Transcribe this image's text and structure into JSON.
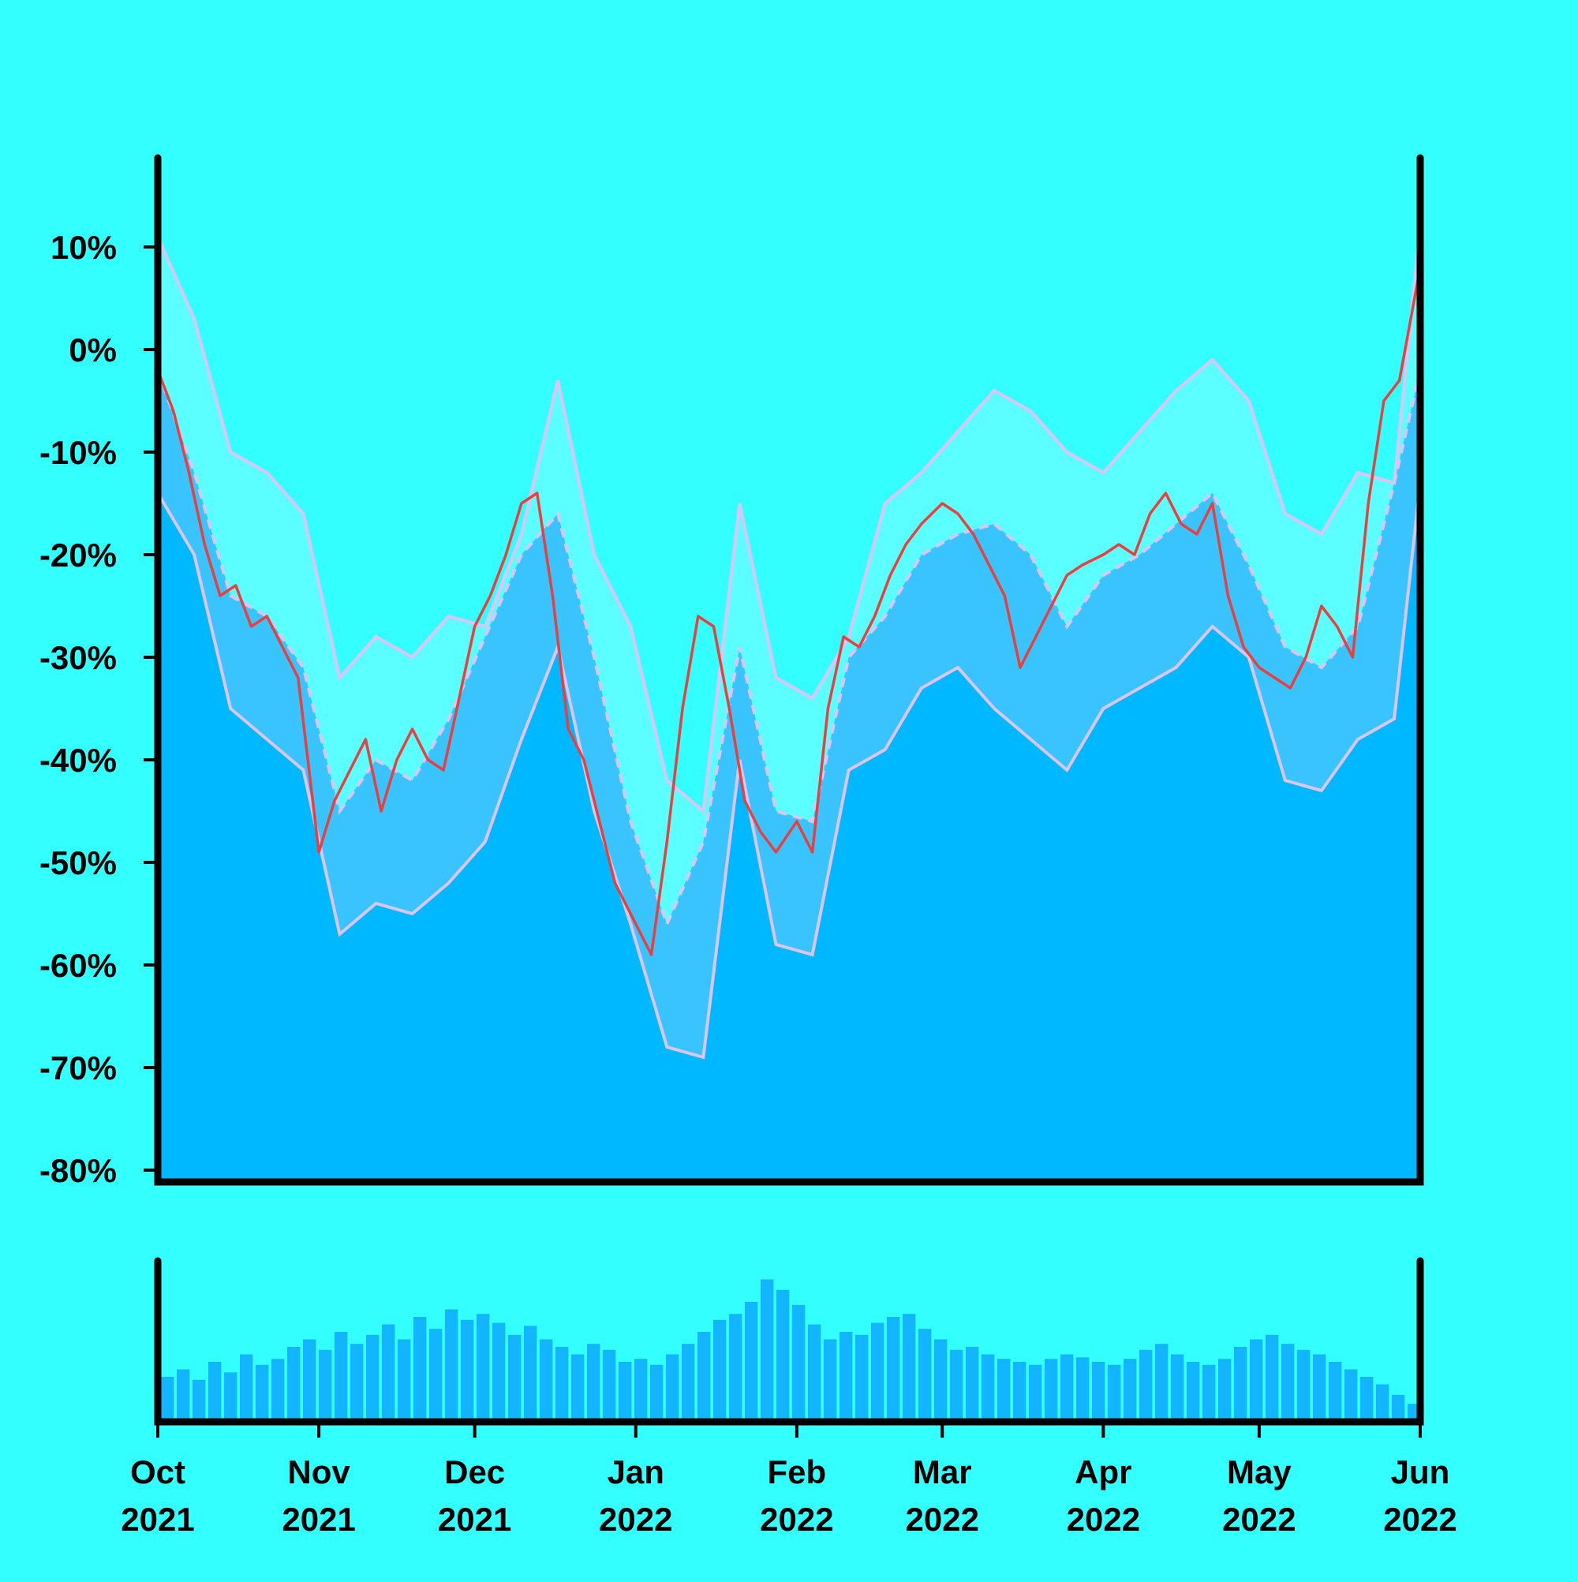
{
  "colors": {
    "background": "#34FFFF",
    "band_upper_fill": "#5CFFFF",
    "band_lower_fill": "#3AC4FF",
    "area_fill": "#00B8FF",
    "price_line": "#E8403F",
    "envelope_line": "#DCC4F5",
    "volume_bar": "#11B6FF",
    "axis": "#000000"
  },
  "chart_data": {
    "type": "line",
    "title": "",
    "xlabel": "",
    "ylabel": "",
    "y_unit": "%",
    "x_range": [
      "2021-10-01",
      "2022-06-01"
    ],
    "ylim": [
      -80,
      18
    ],
    "y_ticks": [
      {
        "value": 10,
        "label": "10%"
      },
      {
        "value": 0,
        "label": "0%"
      },
      {
        "value": -10,
        "label": "-10%"
      },
      {
        "value": -20,
        "label": "-20%"
      },
      {
        "value": -30,
        "label": "-30%"
      },
      {
        "value": -40,
        "label": "-40%"
      },
      {
        "value": -50,
        "label": "-50%"
      },
      {
        "value": -60,
        "label": "-60%"
      },
      {
        "value": -70,
        "label": "-70%"
      },
      {
        "value": -80,
        "label": "-80%"
      }
    ],
    "x_ticks": [
      {
        "date": "2021-10-01",
        "month": "Oct",
        "year": "2021"
      },
      {
        "date": "2021-11-01",
        "month": "Nov",
        "year": "2021"
      },
      {
        "date": "2021-12-01",
        "month": "Dec",
        "year": "2021"
      },
      {
        "date": "2022-01-01",
        "month": "Jan",
        "year": "2022"
      },
      {
        "date": "2022-02-01",
        "month": "Feb",
        "year": "2022"
      },
      {
        "date": "2022-03-01",
        "month": "Mar",
        "year": "2022"
      },
      {
        "date": "2022-04-01",
        "month": "Apr",
        "year": "2022"
      },
      {
        "date": "2022-05-01",
        "month": "May",
        "year": "2022"
      },
      {
        "date": "2022-06-01",
        "month": "Jun",
        "year": "2022"
      }
    ],
    "grid": false,
    "legend": "none",
    "series": [
      {
        "role": "price",
        "x": [
          "2021-10-01",
          "2021-10-04",
          "2021-10-07",
          "2021-10-10",
          "2021-10-13",
          "2021-10-16",
          "2021-10-19",
          "2021-10-22",
          "2021-10-25",
          "2021-10-28",
          "2021-11-01",
          "2021-11-04",
          "2021-11-07",
          "2021-11-10",
          "2021-11-13",
          "2021-11-16",
          "2021-11-19",
          "2021-11-22",
          "2021-11-25",
          "2021-11-28",
          "2021-12-01",
          "2021-12-04",
          "2021-12-07",
          "2021-12-10",
          "2021-12-13",
          "2021-12-16",
          "2021-12-19",
          "2021-12-22",
          "2021-12-25",
          "2021-12-28",
          "2022-01-01",
          "2022-01-04",
          "2022-01-07",
          "2022-01-10",
          "2022-01-13",
          "2022-01-16",
          "2022-01-19",
          "2022-01-22",
          "2022-01-25",
          "2022-01-28",
          "2022-02-01",
          "2022-02-04",
          "2022-02-07",
          "2022-02-10",
          "2022-02-13",
          "2022-02-16",
          "2022-02-19",
          "2022-02-22",
          "2022-02-25",
          "2022-03-01",
          "2022-03-04",
          "2022-03-07",
          "2022-03-10",
          "2022-03-13",
          "2022-03-16",
          "2022-03-19",
          "2022-03-22",
          "2022-03-25",
          "2022-03-28",
          "2022-04-01",
          "2022-04-04",
          "2022-04-07",
          "2022-04-10",
          "2022-04-13",
          "2022-04-16",
          "2022-04-19",
          "2022-04-22",
          "2022-04-25",
          "2022-04-28",
          "2022-05-01",
          "2022-05-04",
          "2022-05-07",
          "2022-05-10",
          "2022-05-13",
          "2022-05-16",
          "2022-05-19",
          "2022-05-22",
          "2022-05-25",
          "2022-05-28",
          "2022-06-01"
        ],
        "values": [
          -2,
          -6,
          -12,
          -19,
          -24,
          -23,
          -27,
          -26,
          -29,
          -32,
          -49,
          -44,
          -41,
          -38,
          -45,
          -40,
          -37,
          -40,
          -41,
          -34,
          -27,
          -24,
          -20,
          -15,
          -14,
          -24,
          -37,
          -40,
          -46,
          -52,
          -56,
          -59,
          -48,
          -35,
          -26,
          -27,
          -35,
          -44,
          -47,
          -49,
          -46,
          -49,
          -35,
          -28,
          -29,
          -26,
          -22,
          -19,
          -17,
          -15,
          -16,
          -18,
          -21,
          -24,
          -31,
          -28,
          -25,
          -22,
          -21,
          -20,
          -19,
          -20,
          -16,
          -14,
          -17,
          -18,
          -15,
          -24,
          -29,
          -31,
          -32,
          -33,
          -30,
          -25,
          -27,
          -30,
          -15,
          -5,
          -3,
          8
        ]
      },
      {
        "role": "moving-average",
        "x": [
          "2021-10-01",
          "2021-10-08",
          "2021-10-15",
          "2021-10-22",
          "2021-10-29",
          "2021-11-05",
          "2021-11-12",
          "2021-11-19",
          "2021-11-26",
          "2021-12-03",
          "2021-12-10",
          "2021-12-17",
          "2021-12-24",
          "2021-12-31",
          "2022-01-07",
          "2022-01-14",
          "2022-01-21",
          "2022-01-28",
          "2022-02-04",
          "2022-02-11",
          "2022-02-18",
          "2022-02-25",
          "2022-03-04",
          "2022-03-11",
          "2022-03-18",
          "2022-03-25",
          "2022-04-01",
          "2022-04-08",
          "2022-04-15",
          "2022-04-22",
          "2022-04-29",
          "2022-05-06",
          "2022-05-13",
          "2022-05-20",
          "2022-05-27",
          "2022-06-01"
        ],
        "values": [
          -2,
          -12,
          -24,
          -26,
          -31,
          -45,
          -40,
          -42,
          -36,
          -28,
          -20,
          -16,
          -30,
          -46,
          -56,
          -48,
          -29,
          -45,
          -46,
          -30,
          -26,
          -20,
          -18,
          -17,
          -20,
          -27,
          -22,
          -20,
          -17,
          -14,
          -21,
          -29,
          -31,
          -27,
          -13,
          -2
        ]
      },
      {
        "role": "upper-band",
        "x": [
          "2021-10-01",
          "2021-10-08",
          "2021-10-15",
          "2021-10-22",
          "2021-10-29",
          "2021-11-05",
          "2021-11-12",
          "2021-11-19",
          "2021-11-26",
          "2021-12-03",
          "2021-12-10",
          "2021-12-17",
          "2021-12-24",
          "2021-12-31",
          "2022-01-07",
          "2022-01-14",
          "2022-01-21",
          "2022-01-28",
          "2022-02-04",
          "2022-02-11",
          "2022-02-18",
          "2022-02-25",
          "2022-03-04",
          "2022-03-11",
          "2022-03-18",
          "2022-03-25",
          "2022-04-01",
          "2022-04-08",
          "2022-04-15",
          "2022-04-22",
          "2022-04-29",
          "2022-05-06",
          "2022-05-13",
          "2022-05-20",
          "2022-05-27",
          "2022-06-01"
        ],
        "values": [
          11,
          3,
          -10,
          -12,
          -16,
          -32,
          -28,
          -30,
          -26,
          -27,
          -18,
          -3,
          -20,
          -27,
          -42,
          -45,
          -15,
          -32,
          -34,
          -28,
          -15,
          -12,
          -8,
          -4,
          -6,
          -10,
          -12,
          -8,
          -4,
          -1,
          -5,
          -16,
          -18,
          -12,
          -13,
          12
        ]
      },
      {
        "role": "lower-band",
        "x": [
          "2021-10-01",
          "2021-10-08",
          "2021-10-15",
          "2021-10-22",
          "2021-10-29",
          "2021-11-05",
          "2021-11-12",
          "2021-11-19",
          "2021-11-26",
          "2021-12-03",
          "2021-12-10",
          "2021-12-17",
          "2021-12-24",
          "2021-12-31",
          "2022-01-07",
          "2022-01-14",
          "2022-01-21",
          "2022-01-28",
          "2022-02-04",
          "2022-02-11",
          "2022-02-18",
          "2022-02-25",
          "2022-03-04",
          "2022-03-11",
          "2022-03-18",
          "2022-03-25",
          "2022-04-01",
          "2022-04-08",
          "2022-04-15",
          "2022-04-22",
          "2022-04-29",
          "2022-05-06",
          "2022-05-13",
          "2022-05-20",
          "2022-05-27",
          "2022-06-01"
        ],
        "values": [
          -14,
          -20,
          -35,
          -38,
          -41,
          -57,
          -54,
          -55,
          -52,
          -48,
          -38,
          -29,
          -45,
          -56,
          -68,
          -69,
          -40,
          -58,
          -59,
          -41,
          -39,
          -33,
          -31,
          -35,
          -38,
          -41,
          -35,
          -33,
          -31,
          -27,
          -30,
          -42,
          -43,
          -38,
          -36,
          -13
        ]
      }
    ],
    "volume": {
      "x_range": [
        "2021-10-01",
        "2022-06-01"
      ],
      "relative_heights": [
        0.3,
        0.35,
        0.28,
        0.4,
        0.33,
        0.45,
        0.38,
        0.42,
        0.5,
        0.55,
        0.48,
        0.6,
        0.52,
        0.58,
        0.65,
        0.55,
        0.7,
        0.62,
        0.75,
        0.68,
        0.72,
        0.66,
        0.58,
        0.64,
        0.55,
        0.5,
        0.45,
        0.52,
        0.48,
        0.4,
        0.42,
        0.38,
        0.45,
        0.52,
        0.6,
        0.68,
        0.72,
        0.8,
        0.95,
        0.88,
        0.78,
        0.65,
        0.55,
        0.6,
        0.58,
        0.66,
        0.7,
        0.72,
        0.62,
        0.55,
        0.48,
        0.5,
        0.45,
        0.42,
        0.4,
        0.38,
        0.42,
        0.45,
        0.43,
        0.4,
        0.38,
        0.42,
        0.48,
        0.52,
        0.45,
        0.4,
        0.38,
        0.42,
        0.5,
        0.55,
        0.58,
        0.52,
        0.48,
        0.45,
        0.4,
        0.35,
        0.3,
        0.25,
        0.18,
        0.12
      ]
    }
  }
}
